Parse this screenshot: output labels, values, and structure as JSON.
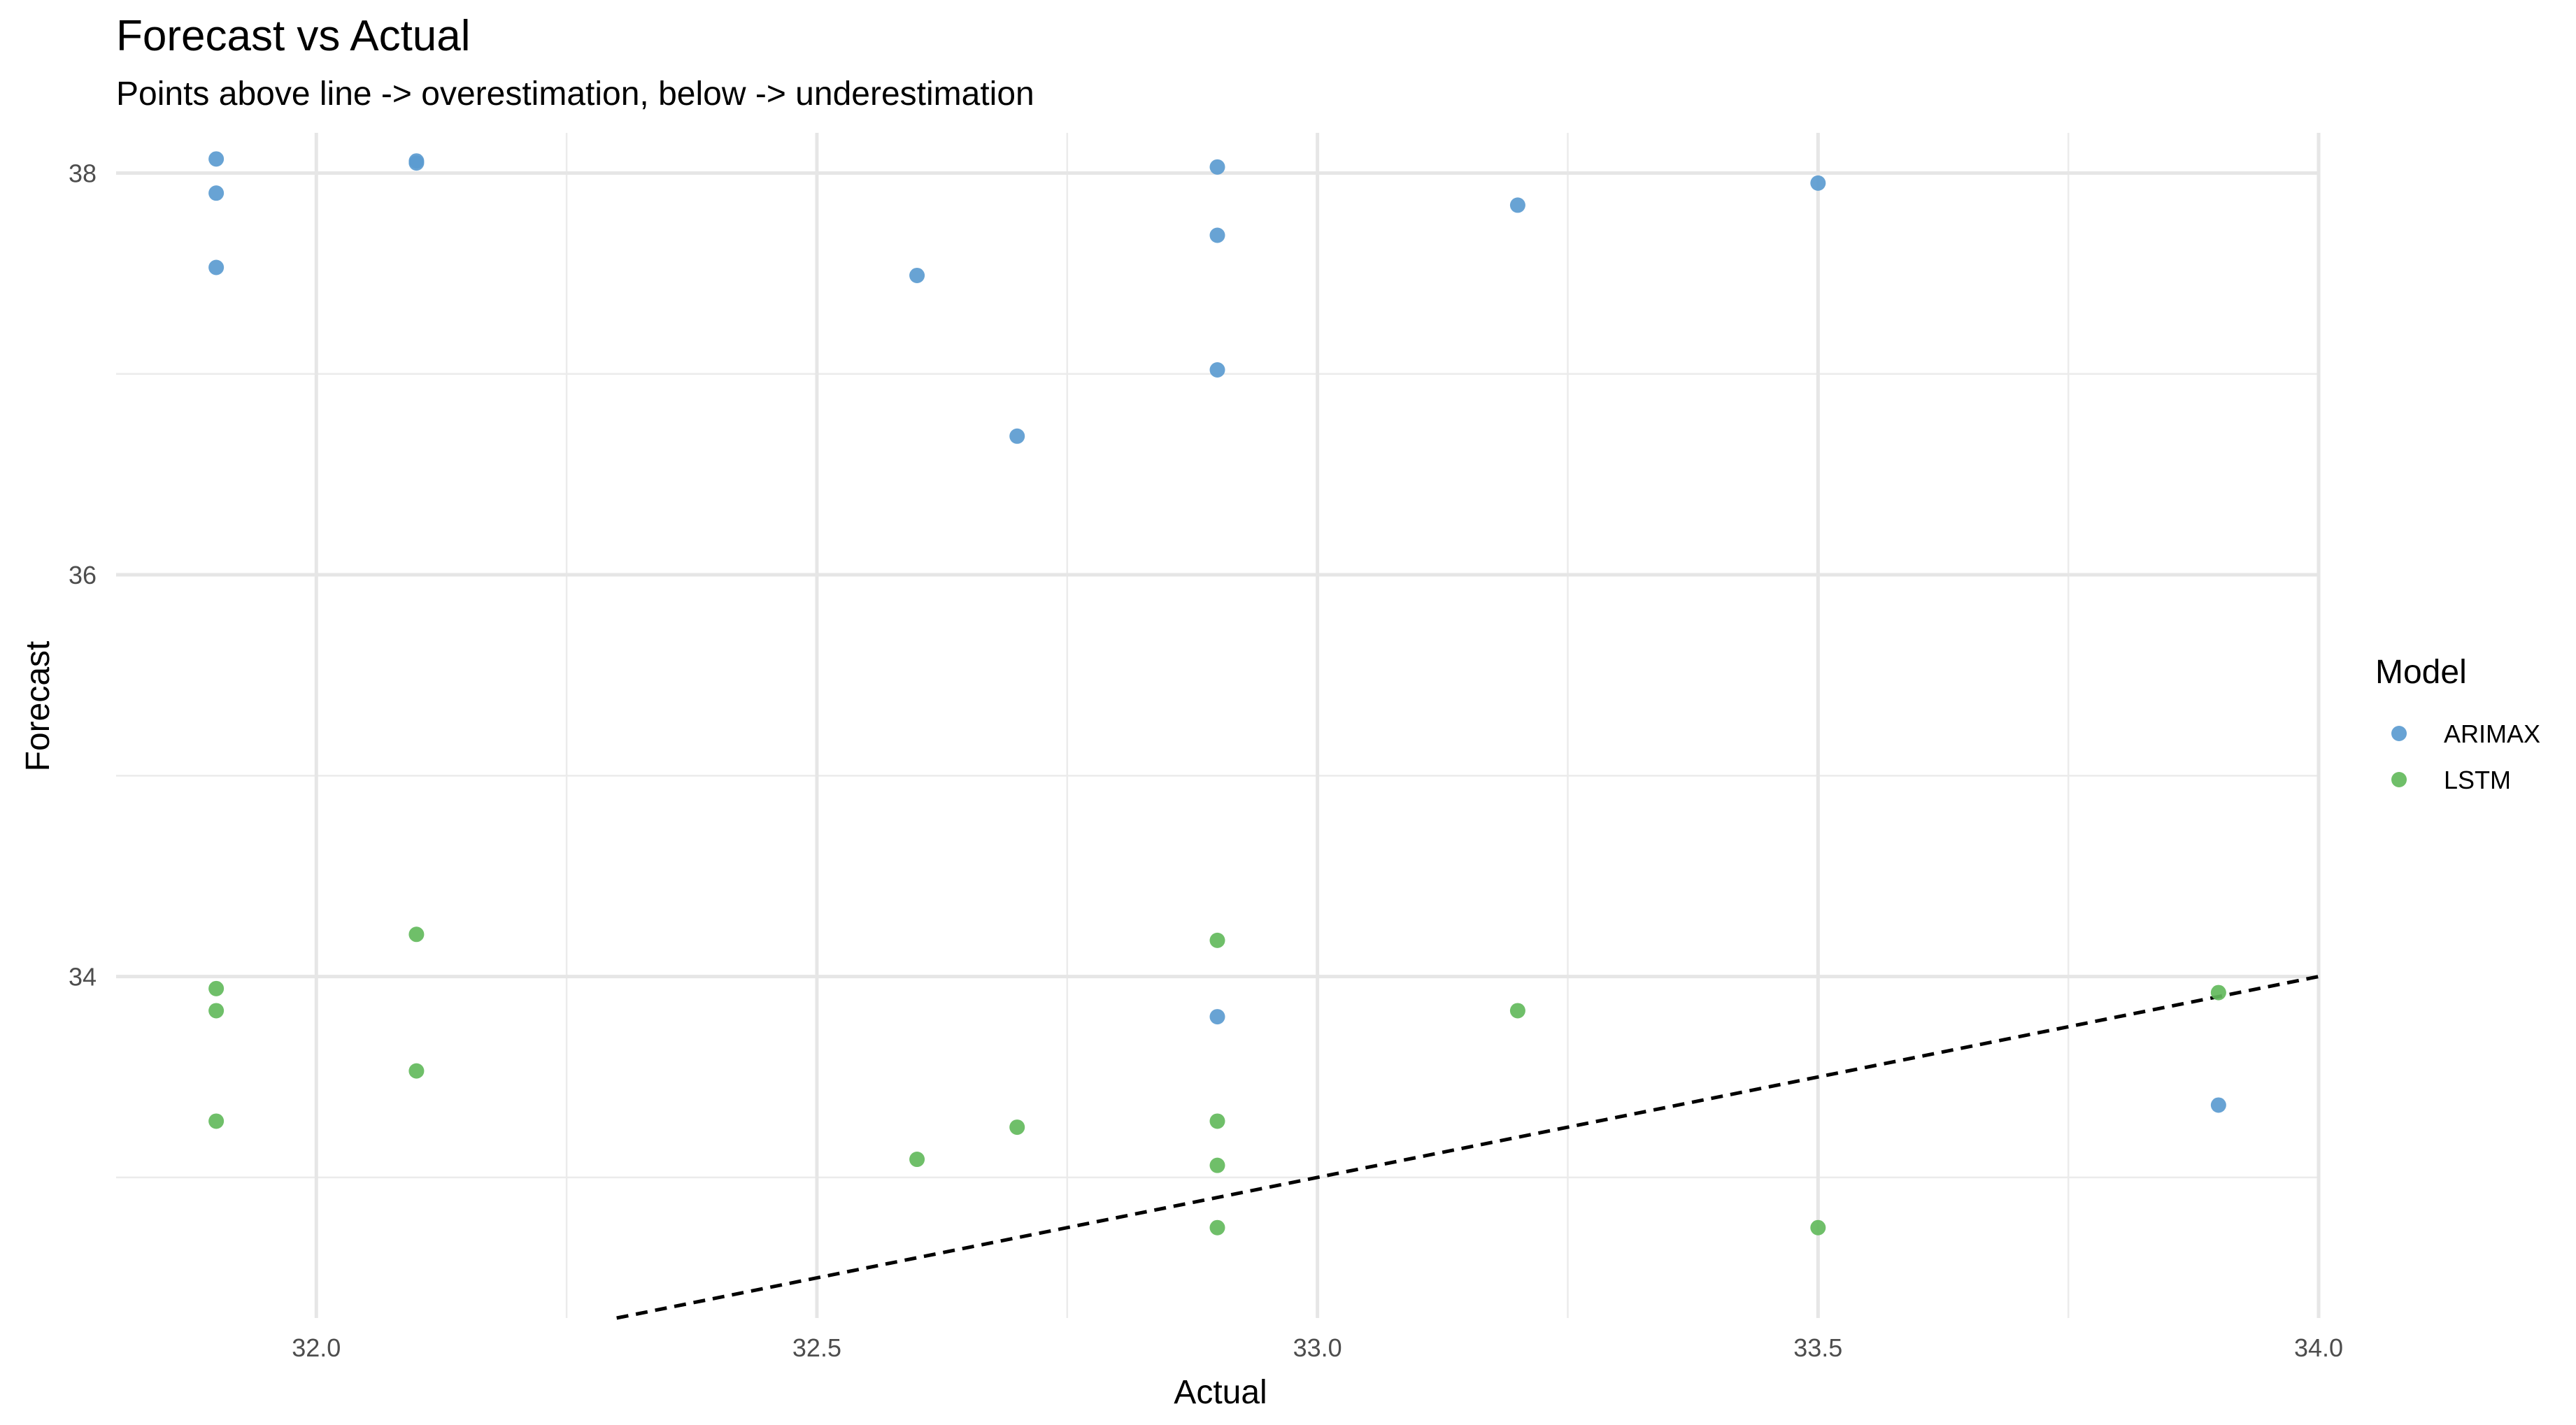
{
  "chart_data": {
    "type": "scatter",
    "title": "Forecast vs Actual",
    "subtitle": "Points above line -> overestimation, below -> underestimation",
    "xlabel": "Actual",
    "ylabel": "Forecast",
    "xlim": [
      31.8,
      34.0
    ],
    "ylim": [
      32.3,
      38.2
    ],
    "x_ticks": [
      32.0,
      32.5,
      33.0,
      33.5,
      34.0
    ],
    "x_tick_labels": [
      "32.0",
      "32.5",
      "33.0",
      "33.5",
      "34.0"
    ],
    "y_ticks": [
      34,
      36,
      38
    ],
    "y_tick_labels": [
      "34",
      "36",
      "38"
    ],
    "grid": true,
    "legend_title": "Model",
    "legend_position": "right",
    "reference_line": {
      "type": "identity",
      "style": "dashed",
      "color": "#000000"
    },
    "series": [
      {
        "name": "ARIMAX",
        "color": "#5B9BD0",
        "points": [
          [
            31.9,
            38.07
          ],
          [
            31.9,
            37.9
          ],
          [
            31.9,
            37.53
          ],
          [
            32.1,
            38.06
          ],
          [
            32.1,
            38.05
          ],
          [
            32.6,
            37.49
          ],
          [
            32.7,
            36.69
          ],
          [
            32.9,
            38.03
          ],
          [
            32.9,
            37.69
          ],
          [
            32.9,
            37.02
          ],
          [
            32.9,
            33.8
          ],
          [
            33.2,
            37.84
          ],
          [
            33.5,
            37.95
          ],
          [
            33.9,
            33.36
          ]
        ]
      },
      {
        "name": "LSTM",
        "color": "#63BA5C",
        "points": [
          [
            31.9,
            33.94
          ],
          [
            31.9,
            33.83
          ],
          [
            31.9,
            33.28
          ],
          [
            32.1,
            34.21
          ],
          [
            32.1,
            33.53
          ],
          [
            32.6,
            33.09
          ],
          [
            32.7,
            33.25
          ],
          [
            32.9,
            34.18
          ],
          [
            32.9,
            33.28
          ],
          [
            32.9,
            33.06
          ],
          [
            32.9,
            32.75
          ],
          [
            33.2,
            33.83
          ],
          [
            33.5,
            32.75
          ],
          [
            33.9,
            33.92
          ]
        ]
      }
    ]
  }
}
